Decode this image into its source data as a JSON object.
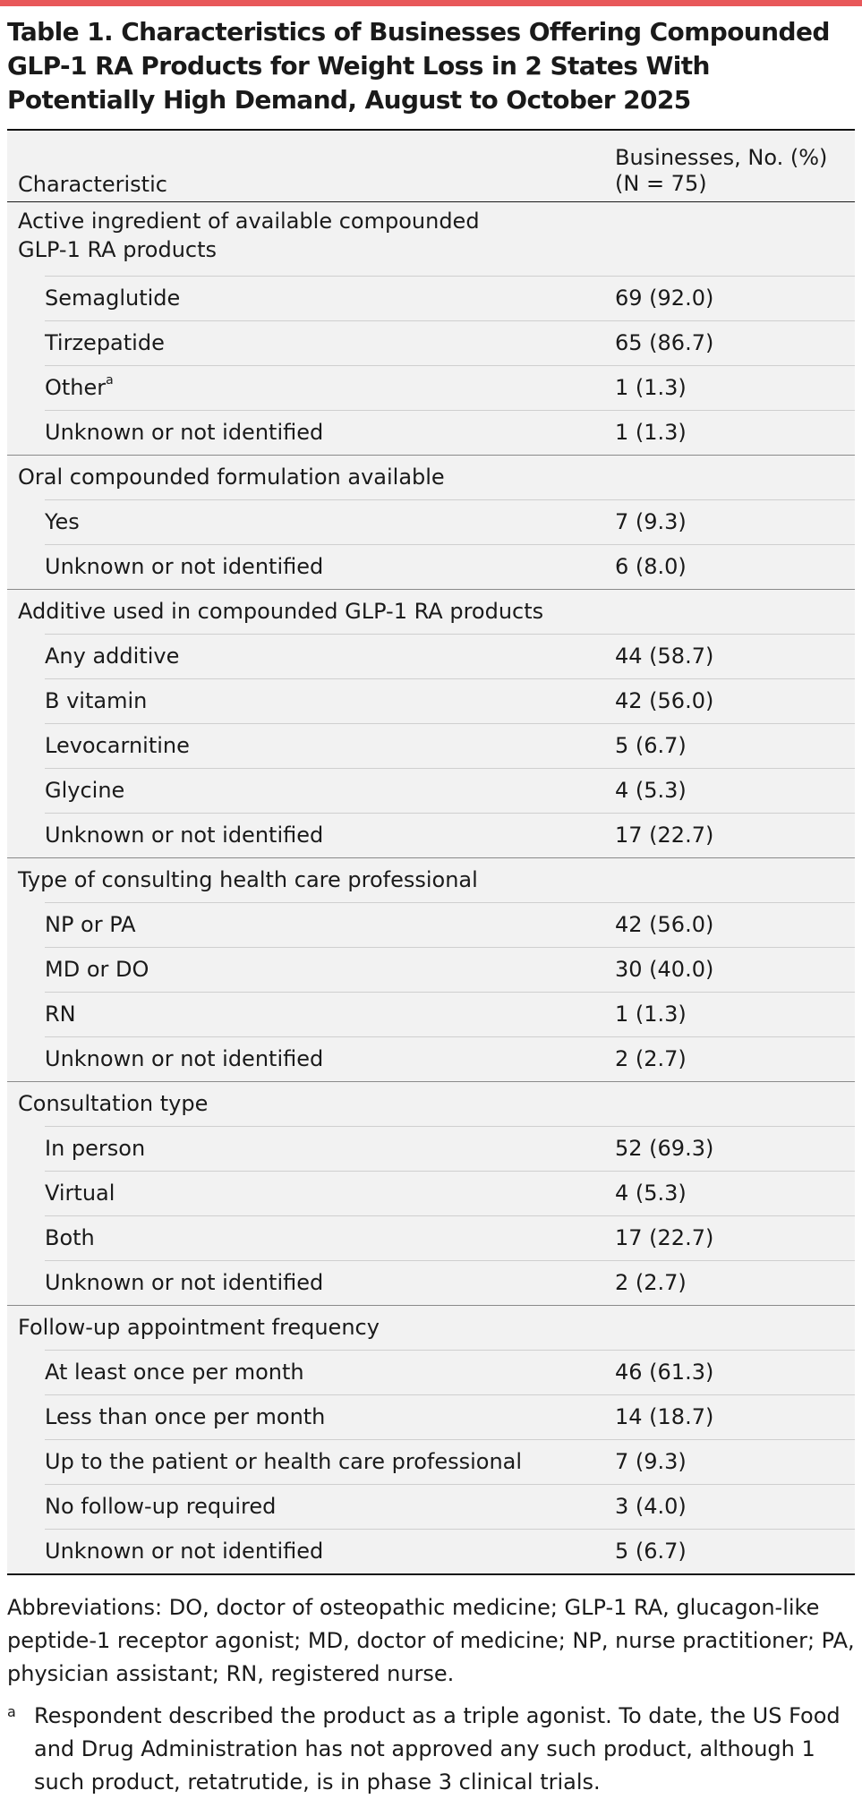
{
  "title": "Table 1. Characteristics of Businesses Offering Compounded GLP-1 RA Products for Weight Loss in 2 States With Potentially High Demand, August to October 2025",
  "header": {
    "characteristic": "Characteristic",
    "value_line1": "Businesses, No. (%)",
    "value_line2": "(N = 75)"
  },
  "groups": [
    {
      "label": "Active ingredient of available compounded GLP-1 RA products",
      "items": [
        {
          "label": "Semaglutide",
          "value": "69 (92.0)"
        },
        {
          "label": "Tirzepatide",
          "value": "65 (86.7)"
        },
        {
          "label": "Other",
          "sup": "a",
          "value": "1 (1.3)"
        },
        {
          "label": "Unknown or not identified",
          "value": "1 (1.3)"
        }
      ]
    },
    {
      "label": "Oral compounded formulation available",
      "items": [
        {
          "label": "Yes",
          "value": "7 (9.3)"
        },
        {
          "label": "Unknown or not identified",
          "value": "6 (8.0)"
        }
      ]
    },
    {
      "label": "Additive used in compounded GLP-1 RA products",
      "items": [
        {
          "label": "Any additive",
          "value": "44 (58.7)"
        },
        {
          "label": "B vitamin",
          "value": "42 (56.0)"
        },
        {
          "label": "Levocarnitine",
          "value": "5 (6.7)"
        },
        {
          "label": "Glycine",
          "value": "4 (5.3)"
        },
        {
          "label": "Unknown or not identified",
          "value": "17 (22.7)"
        }
      ]
    },
    {
      "label": "Type of consulting health care professional",
      "items": [
        {
          "label": "NP or PA",
          "value": "42 (56.0)"
        },
        {
          "label": "MD or DO",
          "value": "30 (40.0)"
        },
        {
          "label": "RN",
          "value": "1 (1.3)"
        },
        {
          "label": "Unknown or not identified",
          "value": "2 (2.7)"
        }
      ]
    },
    {
      "label": "Consultation type",
      "items": [
        {
          "label": "In person",
          "value": "52 (69.3)"
        },
        {
          "label": "Virtual",
          "value": "4 (5.3)"
        },
        {
          "label": "Both",
          "value": "17 (22.7)"
        },
        {
          "label": "Unknown or not identified",
          "value": "2 (2.7)"
        }
      ]
    },
    {
      "label": "Follow-up appointment frequency",
      "items": [
        {
          "label": "At least once per month",
          "value": "46 (61.3)"
        },
        {
          "label": "Less than once per month",
          "value": "14 (18.7)"
        },
        {
          "label": "Up to the patient or health care professional",
          "value": "7 (9.3)"
        },
        {
          "label": "No follow-up required",
          "value": "3 (4.0)"
        },
        {
          "label": "Unknown or not identified",
          "value": "5 (6.7)"
        }
      ]
    }
  ],
  "abbreviations": "Abbreviations: DO, doctor of osteopathic medicine; GLP-1 RA, glucagon-like peptide-1 receptor agonist; MD, doctor of medicine; NP, nurse practitioner; PA, physician assistant; RN, registered nurse.",
  "footnote": {
    "mark": "a",
    "text": "Respondent described the product as a triple agonist. To date, the US Food and Drug Administration has not approved any such product, although 1 such product, retatrutide, is in phase 3 clinical trials."
  }
}
